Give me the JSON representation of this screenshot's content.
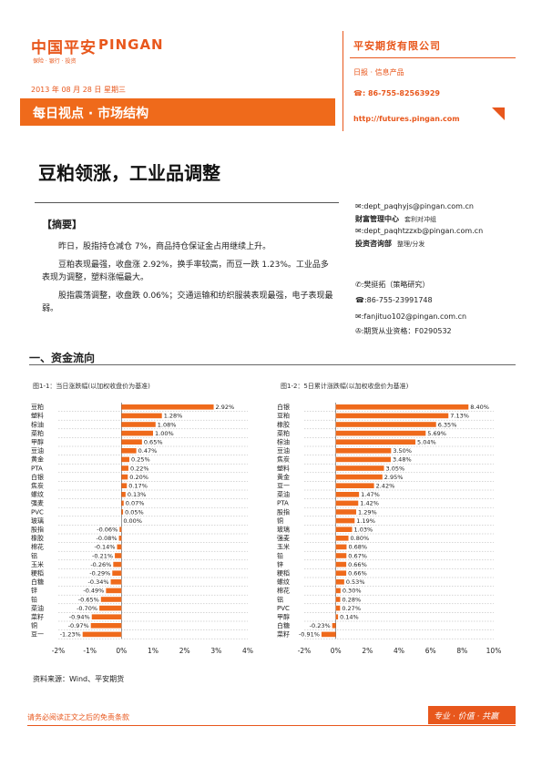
{
  "header": {
    "logo_cn": "中国平安",
    "logo_en": "PINGAN",
    "logo_sub": "保险 · 银行 · 投资",
    "date": "2013 年 08 月 28 日 星期三",
    "banner": "每日视点 · 市场结构",
    "company": "平安期货有限公司",
    "product": "日报 · 信息产品",
    "phone": "☎: 86-755-82563929",
    "url": "http://futures.pingan.com"
  },
  "title": "豆粕领涨，工业品调整",
  "abstract": {
    "heading": "【摘要】",
    "p1": "昨日，股指持仓减仓 7%，商品持仓保证金占用继续上升。",
    "p2": "豆粕表现最强，收盘涨 2.92%，换手率较高，而豆一跌 1.23%。工业品多表现为调整，塑料涨幅最大。",
    "p3": "股指震荡调整，收盘跌 0.06%；交通运输和纺织服装表现最强，电子表现最弱。"
  },
  "contacts": {
    "email1": "✉:dept_paqhyjs@pingan.com.cn",
    "dept1": "财富管理中心",
    "dept1_sub": "套利对冲组",
    "email2": "✉:dept_paqhtzzxb@pingan.com.cn",
    "dept2": "投资咨询部",
    "dept2_sub": "整理/分发",
    "person": "✆:樊挺拓（策略研究）",
    "person_phone": "☎:86-755-23991748",
    "person_email": "✉:fanjituo102@pingan.com.cn",
    "license": "✇:期货从业资格：F0290532"
  },
  "section1": "一、资金流向",
  "fig1_caption": "图1-1：当日涨跌幅(以加权收盘价为基准)",
  "fig2_caption": "图1-2：5日累计涨跌幅(以加权收盘价为基准)",
  "source": "资料来源：Wind、平安期货",
  "footer": "请务必阅读正文之后的免责条款",
  "slogan": "专业 · 价值 · 共赢",
  "chart_data": [
    {
      "type": "bar",
      "orientation": "horizontal",
      "categories": [
        "豆粕",
        "塑料",
        "棕油",
        "菜粕",
        "甲醇",
        "豆油",
        "黄金",
        "PTA",
        "白银",
        "焦炭",
        "螺纹",
        "强麦",
        "PVC",
        "玻璃",
        "股指",
        "橡胶",
        "棉花",
        "铝",
        "玉米",
        "粳稻",
        "白糖",
        "锌",
        "铅",
        "菜油",
        "菜籽",
        "铜",
        "豆一"
      ],
      "values": [
        2.92,
        1.28,
        1.08,
        1.0,
        0.65,
        0.47,
        0.25,
        0.22,
        0.2,
        0.17,
        0.13,
        0.07,
        0.05,
        0.0,
        -0.06,
        -0.08,
        -0.14,
        -0.21,
        -0.26,
        -0.29,
        -0.34,
        -0.49,
        -0.65,
        -0.7,
        -0.94,
        -0.97,
        -1.23
      ],
      "labels": [
        "2.92%",
        "1.28%",
        "1.08%",
        "1.00%",
        "0.65%",
        "0.47%",
        "0.25%",
        "0.22%",
        "0.20%",
        "0.17%",
        "0.13%",
        "0.07%",
        "0.05%",
        "0.00%",
        "-0.06%",
        "-0.08%",
        "-0.14%",
        "-0.21%",
        "-0.26%",
        "-0.29%",
        "-0.34%",
        "-0.49%",
        "-0.65%",
        "-0.70%",
        "-0.94%",
        "-0.97%",
        "-1.23%"
      ],
      "xlim": [
        -2,
        4
      ],
      "xticks": [
        "-2%",
        "-1%",
        "0%",
        "1%",
        "2%",
        "3%",
        "4%"
      ],
      "color": "#ef6a1b"
    },
    {
      "type": "bar",
      "orientation": "horizontal",
      "categories": [
        "白银",
        "豆粕",
        "橡胶",
        "菜粕",
        "棕油",
        "豆油",
        "焦炭",
        "塑料",
        "黄金",
        "豆一",
        "菜油",
        "PTA",
        "股指",
        "铜",
        "玻璃",
        "强麦",
        "玉米",
        "铅",
        "锌",
        "粳稻",
        "螺纹",
        "棉花",
        "铝",
        "PVC",
        "甲醇",
        "白糖",
        "菜籽"
      ],
      "values": [
        8.4,
        7.13,
        6.35,
        5.69,
        5.04,
        3.5,
        3.48,
        3.05,
        2.95,
        2.42,
        1.47,
        1.42,
        1.29,
        1.19,
        1.03,
        0.8,
        0.68,
        0.67,
        0.66,
        0.66,
        0.53,
        0.3,
        0.28,
        0.27,
        0.14,
        -0.23,
        -0.91
      ],
      "labels": [
        "8.40%",
        "7.13%",
        "6.35%",
        "5.69%",
        "5.04%",
        "3.50%",
        "3.48%",
        "3.05%",
        "2.95%",
        "2.42%",
        "1.47%",
        "1.42%",
        "1.29%",
        "1.19%",
        "1.03%",
        "0.80%",
        "0.68%",
        "0.67%",
        "0.66%",
        "0.66%",
        "0.53%",
        "0.30%",
        "0.28%",
        "0.27%",
        "0.14%",
        "-0.23%",
        "-0.91%"
      ],
      "xlim": [
        -2,
        10
      ],
      "xticks": [
        "-2%",
        "0%",
        "2%",
        "4%",
        "6%",
        "8%",
        "10%"
      ],
      "color": "#ef6a1b"
    }
  ]
}
